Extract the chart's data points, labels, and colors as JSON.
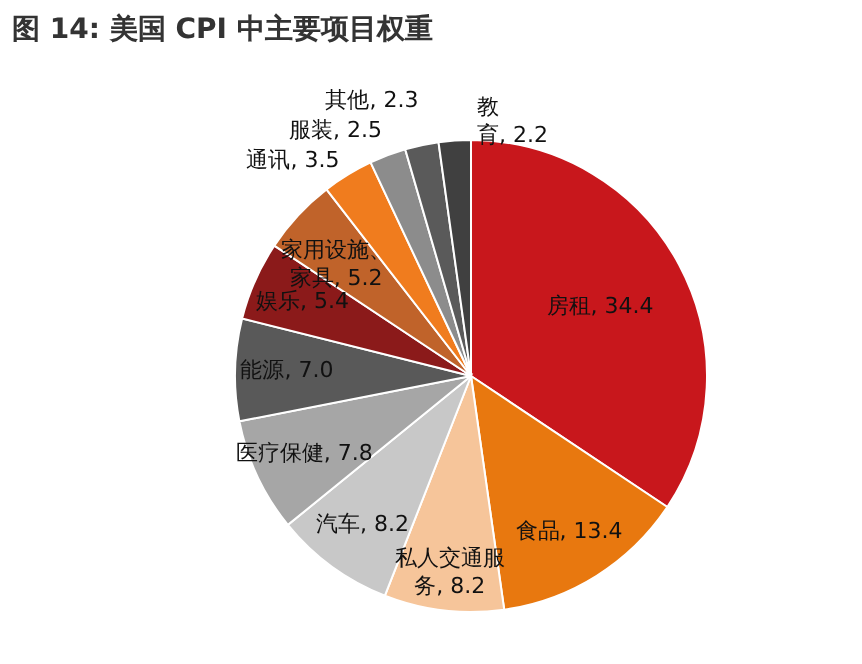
{
  "chart_data": {
    "type": "pie",
    "title": "图 14: 美国 CPI 中主要项目权重",
    "categories": [
      "房租",
      "食品",
      "私人交通服务",
      "汽车",
      "医疗保健",
      "能源",
      "娱乐",
      "家用设施、家具",
      "通讯",
      "服装",
      "其他",
      "教育"
    ],
    "values": [
      34.4,
      13.4,
      8.2,
      8.2,
      7.8,
      7.0,
      5.4,
      5.2,
      3.5,
      2.5,
      2.3,
      2.2
    ],
    "colors": [
      "#c8171c",
      "#e8780f",
      "#f6c59a",
      "#c8c8c8",
      "#a6a6a6",
      "#595959",
      "#8b1a1a",
      "#c0632a",
      "#f07c1e",
      "#8c8c8c",
      "#5a5a5a",
      "#404040"
    ],
    "value_labels": [
      "34.4",
      "13.4",
      "8.2",
      "8.2",
      "7.8",
      "7.0",
      "5.4",
      "5.2",
      "3.5",
      "2.5",
      "2.3",
      "2.2"
    ]
  }
}
